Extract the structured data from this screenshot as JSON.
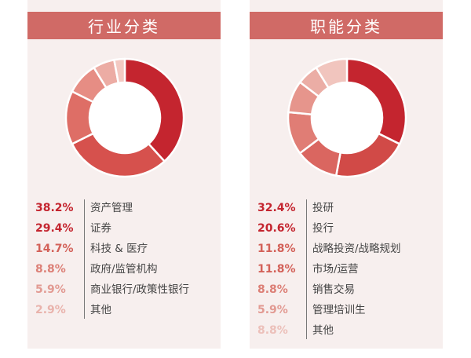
{
  "chart_data": [
    {
      "type": "pie",
      "title": "行业分类",
      "categories": [
        "资产管理",
        "证券",
        "科技 & 医疗",
        "政府/监管机构",
        "商业银行/政策性银行",
        "其他"
      ],
      "values": [
        38.2,
        29.4,
        14.7,
        8.8,
        5.9,
        2.9
      ],
      "value_labels": [
        "38.2%",
        "29.4%",
        "14.7%",
        "8.8%",
        "5.9%",
        "2.9%"
      ],
      "colors": [
        "#c4252f",
        "#d6514d",
        "#de6e66",
        "#e68d84",
        "#ecaca4",
        "#f3c9c2"
      ],
      "label_colors": [
        "#c4252f",
        "#c4252f",
        "#d36159",
        "#dc7f76",
        "#e29a92",
        "#e9b3ac"
      ]
    },
    {
      "type": "pie",
      "title": "职能分类",
      "categories": [
        "投研",
        "投行",
        "战略投资/战略规划",
        "市场/运营",
        "销售交易",
        "管理培训生",
        "其他"
      ],
      "values": [
        32.4,
        20.6,
        11.8,
        11.8,
        8.8,
        5.9,
        8.8
      ],
      "value_labels": [
        "32.4%",
        "20.6%",
        "11.8%",
        "11.8%",
        "8.8%",
        "5.9%",
        "8.8%"
      ],
      "colors": [
        "#c4252f",
        "#d14a47",
        "#da6660",
        "#e07d75",
        "#e6958c",
        "#ebada5",
        "#f1c5be"
      ],
      "label_colors": [
        "#c4252f",
        "#c4252f",
        "#d36159",
        "#d36159",
        "#dc7f76",
        "#e29a92",
        "#ecc0ba"
      ]
    }
  ]
}
